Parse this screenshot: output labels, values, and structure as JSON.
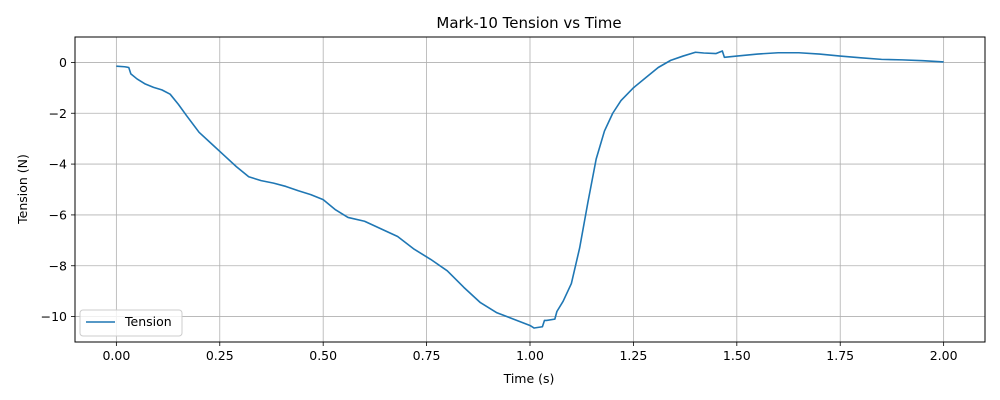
{
  "chart_data": {
    "type": "line",
    "title": "Mark-10 Tension vs Time",
    "xlabel": "Time (s)",
    "ylabel": "Tension (N)",
    "xlim": [
      -0.1,
      2.1
    ],
    "ylim": [
      -11.0,
      1.0
    ],
    "x_ticks": [
      0.0,
      0.25,
      0.5,
      0.75,
      1.0,
      1.25,
      1.5,
      1.75,
      2.0
    ],
    "x_tick_labels": [
      "0.00",
      "0.25",
      "0.50",
      "0.75",
      "1.00",
      "1.25",
      "1.50",
      "1.75",
      "2.00"
    ],
    "y_ticks": [
      0,
      -2,
      -4,
      -6,
      -8,
      -10
    ],
    "y_tick_labels": [
      "0",
      "−2",
      "−4",
      "−6",
      "−8",
      "−10"
    ],
    "grid": true,
    "legend_position": "lower-left",
    "series": [
      {
        "name": "Tension",
        "color": "#1f77b4",
        "x": [
          0.0,
          0.02,
          0.03,
          0.035,
          0.05,
          0.07,
          0.09,
          0.11,
          0.13,
          0.15,
          0.17,
          0.2,
          0.23,
          0.26,
          0.29,
          0.32,
          0.35,
          0.38,
          0.41,
          0.44,
          0.47,
          0.5,
          0.53,
          0.56,
          0.6,
          0.64,
          0.68,
          0.72,
          0.76,
          0.8,
          0.84,
          0.88,
          0.92,
          0.96,
          1.0,
          1.01,
          1.03,
          1.035,
          1.04,
          1.06,
          1.065,
          1.08,
          1.1,
          1.12,
          1.14,
          1.16,
          1.18,
          1.2,
          1.22,
          1.25,
          1.28,
          1.31,
          1.34,
          1.37,
          1.4,
          1.42,
          1.45,
          1.465,
          1.47,
          1.5,
          1.55,
          1.6,
          1.65,
          1.7,
          1.75,
          1.8,
          1.85,
          1.9,
          1.95,
          2.0
        ],
        "values": [
          -0.15,
          -0.17,
          -0.2,
          -0.45,
          -0.65,
          -0.85,
          -0.98,
          -1.08,
          -1.25,
          -1.65,
          -2.1,
          -2.75,
          -3.2,
          -3.65,
          -4.1,
          -4.5,
          -4.65,
          -4.75,
          -4.88,
          -5.05,
          -5.2,
          -5.4,
          -5.8,
          -6.1,
          -6.25,
          -6.55,
          -6.85,
          -7.35,
          -7.75,
          -8.2,
          -8.85,
          -9.45,
          -9.85,
          -10.1,
          -10.35,
          -10.45,
          -10.4,
          -10.15,
          -10.15,
          -10.1,
          -9.8,
          -9.4,
          -8.7,
          -7.3,
          -5.5,
          -3.8,
          -2.7,
          -2.0,
          -1.5,
          -1.0,
          -0.6,
          -0.2,
          0.08,
          0.25,
          0.4,
          0.37,
          0.35,
          0.45,
          0.2,
          0.25,
          0.33,
          0.38,
          0.38,
          0.33,
          0.25,
          0.18,
          0.12,
          0.1,
          0.07,
          0.02
        ]
      }
    ]
  }
}
